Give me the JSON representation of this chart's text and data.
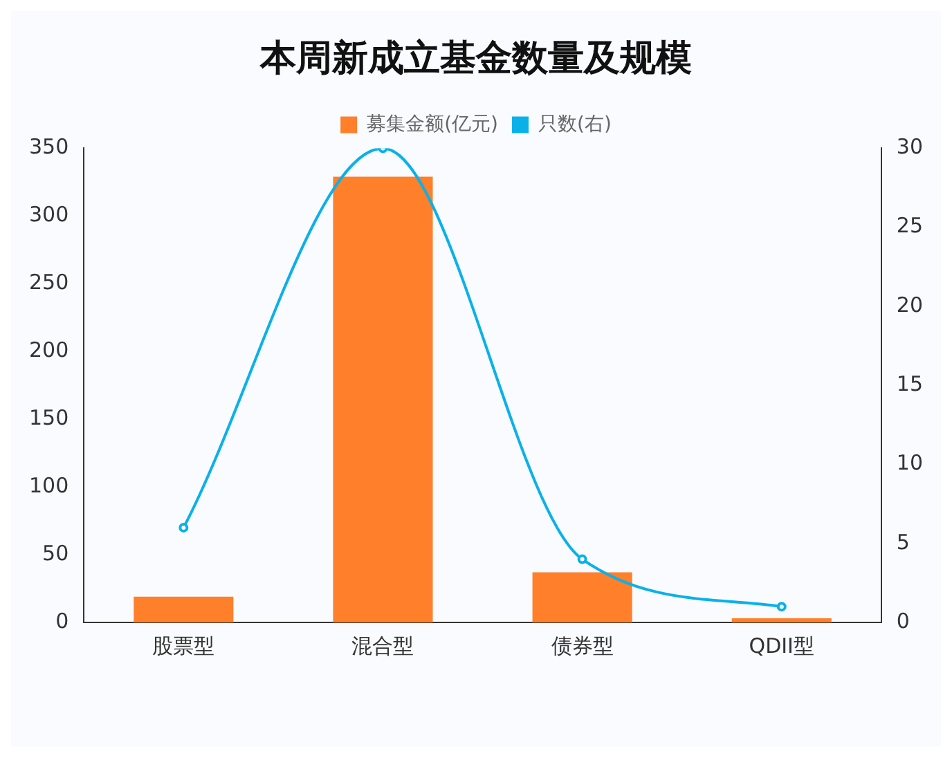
{
  "chart_data": {
    "type": "bar",
    "title": "本周新成立基金数量及规模",
    "categories": [
      "股票型",
      "混合型",
      "债券型",
      "QDII型"
    ],
    "series": [
      {
        "name": "募集金额(亿元)",
        "color": "#ff7f2a",
        "values": [
          19,
          329,
          37,
          3
        ]
      },
      {
        "name": "只数(右)",
        "type": "line",
        "axis": "y2",
        "color": "#0ab1e8",
        "values": [
          6,
          30,
          4,
          1
        ]
      }
    ],
    "ylim": [
      0,
      350
    ],
    "yticks": [
      0,
      50,
      100,
      150,
      200,
      250,
      300,
      350
    ],
    "y2lim": [
      0,
      30
    ],
    "y2ticks": [
      0,
      5,
      10,
      15,
      20,
      25,
      30
    ],
    "grid": false,
    "legend": "top",
    "marker": "circle"
  }
}
